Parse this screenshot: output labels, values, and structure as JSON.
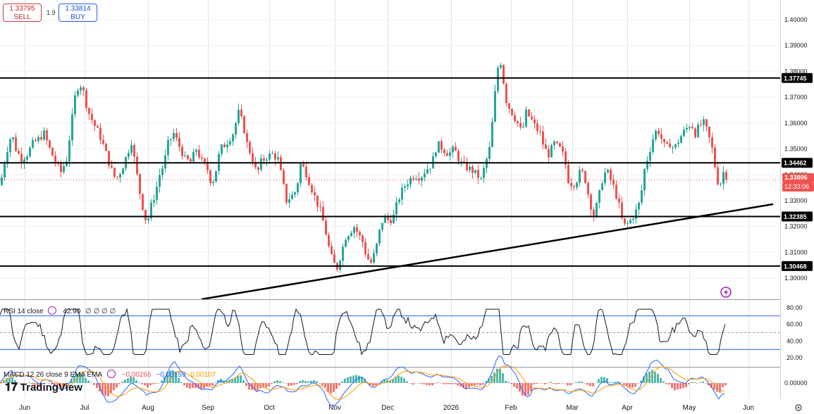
{
  "quote": {
    "sell_price": "1.33795",
    "sell_label": "SELL",
    "buy_price": "1.33814",
    "buy_label": "BUY",
    "spread": "1.9"
  },
  "price_axis": {
    "ticks": [
      "1.40000",
      "1.39000",
      "1.38000",
      "1.37000",
      "1.36000",
      "1.35000",
      "1.34000",
      "1.33000",
      "1.32000",
      "1.31000",
      "1.30000"
    ],
    "tick_values": [
      1.4,
      1.39,
      1.38,
      1.37,
      1.36,
      1.35,
      1.34,
      1.33,
      1.32,
      1.31,
      1.3
    ]
  },
  "levels": [
    {
      "label": "1.37745",
      "value": 1.37745
    },
    {
      "label": "1.34462",
      "value": 1.34462
    },
    {
      "label": "1.32385",
      "value": 1.32385
    },
    {
      "label": "1.30468",
      "value": 1.30468
    }
  ],
  "current_price": {
    "value": "1.33806",
    "countdown": "12:33:06",
    "color": "#ef5350"
  },
  "x_axis": {
    "labels": [
      "Jun",
      "Jul",
      "Aug",
      "Sep",
      "Oct",
      "Nov",
      "Dec",
      "2026",
      "Feb",
      "Mar",
      "Apr",
      "May",
      "Jun"
    ]
  },
  "rsi": {
    "title": "RSI 14 close",
    "value": "42.90",
    "extra": "∅ ∅ ∅ ∅",
    "ticks": [
      "80.00",
      "60.00",
      "40.00",
      "20.00"
    ],
    "tick_values": [
      80,
      60,
      40,
      20
    ],
    "upper": 70,
    "lower": 30
  },
  "macd": {
    "title": "MACD 12 26 close 9 EMA EMA",
    "hist": "−0.00266",
    "macd": "−0.00159",
    "signal": "0.00107",
    "tick": "0.00000"
  },
  "branding": {
    "name": "TradingView"
  },
  "colors": {
    "up": "#26a69a",
    "down": "#ef5350",
    "level": "#000000",
    "rsi_band": "#2962ff",
    "macd_line": "#2962ff",
    "signal_line": "#ff9800"
  },
  "chart_data": {
    "type": "candlestick",
    "title": "",
    "xlabel": "",
    "ylabel": "",
    "ylim": [
      1.296,
      1.405
    ],
    "grid": true,
    "price_path": [
      [
        0,
        1.336
      ],
      [
        8,
        1.348
      ],
      [
        16,
        1.356
      ],
      [
        22,
        1.35
      ],
      [
        30,
        1.346
      ],
      [
        38,
        1.348
      ],
      [
        46,
        1.352
      ],
      [
        55,
        1.354
      ],
      [
        62,
        1.356
      ],
      [
        70,
        1.35
      ],
      [
        78,
        1.345
      ],
      [
        86,
        1.341
      ],
      [
        94,
        1.346
      ],
      [
        100,
        1.358
      ],
      [
        106,
        1.37
      ],
      [
        112,
        1.376
      ],
      [
        118,
        1.372
      ],
      [
        124,
        1.365
      ],
      [
        132,
        1.36
      ],
      [
        140,
        1.356
      ],
      [
        148,
        1.35
      ],
      [
        156,
        1.343
      ],
      [
        164,
        1.338
      ],
      [
        172,
        1.342
      ],
      [
        180,
        1.348
      ],
      [
        186,
        1.353
      ],
      [
        192,
        1.343
      ],
      [
        198,
        1.333
      ],
      [
        204,
        1.325
      ],
      [
        208,
        1.321
      ],
      [
        214,
        1.328
      ],
      [
        220,
        1.333
      ],
      [
        226,
        1.34
      ],
      [
        232,
        1.344
      ],
      [
        238,
        1.352
      ],
      [
        246,
        1.356
      ],
      [
        254,
        1.351
      ],
      [
        262,
        1.346
      ],
      [
        270,
        1.345
      ],
      [
        278,
        1.35
      ],
      [
        286,
        1.345
      ],
      [
        294,
        1.342
      ],
      [
        300,
        1.336
      ],
      [
        306,
        1.342
      ],
      [
        312,
        1.35
      ],
      [
        320,
        1.352
      ],
      [
        330,
        1.356
      ],
      [
        338,
        1.364
      ],
      [
        344,
        1.36
      ],
      [
        350,
        1.352
      ],
      [
        358,
        1.346
      ],
      [
        364,
        1.34
      ],
      [
        370,
        1.345
      ],
      [
        378,
        1.347
      ],
      [
        386,
        1.348
      ],
      [
        394,
        1.346
      ],
      [
        400,
        1.338
      ],
      [
        406,
        1.33
      ],
      [
        414,
        1.332
      ],
      [
        420,
        1.334
      ],
      [
        426,
        1.344
      ],
      [
        432,
        1.342
      ],
      [
        440,
        1.336
      ],
      [
        448,
        1.33
      ],
      [
        454,
        1.326
      ],
      [
        460,
        1.32
      ],
      [
        466,
        1.312
      ],
      [
        472,
        1.306
      ],
      [
        478,
        1.304
      ],
      [
        484,
        1.31
      ],
      [
        490,
        1.316
      ],
      [
        496,
        1.318
      ],
      [
        502,
        1.32
      ],
      [
        508,
        1.317
      ],
      [
        514,
        1.314
      ],
      [
        520,
        1.308
      ],
      [
        526,
        1.306
      ],
      [
        532,
        1.31
      ],
      [
        538,
        1.318
      ],
      [
        544,
        1.324
      ],
      [
        552,
        1.322
      ],
      [
        558,
        1.324
      ],
      [
        564,
        1.33
      ],
      [
        572,
        1.335
      ],
      [
        580,
        1.338
      ],
      [
        588,
        1.34
      ],
      [
        596,
        1.339
      ],
      [
        604,
        1.342
      ],
      [
        612,
        1.344
      ],
      [
        620,
        1.352
      ],
      [
        628,
        1.35
      ],
      [
        636,
        1.348
      ],
      [
        644,
        1.35
      ],
      [
        652,
        1.345
      ],
      [
        660,
        1.343
      ],
      [
        668,
        1.342
      ],
      [
        676,
        1.34
      ],
      [
        682,
        1.338
      ],
      [
        688,
        1.344
      ],
      [
        694,
        1.35
      ],
      [
        700,
        1.365
      ],
      [
        704,
        1.378
      ],
      [
        708,
        1.385
      ],
      [
        712,
        1.382
      ],
      [
        716,
        1.37
      ],
      [
        722,
        1.366
      ],
      [
        728,
        1.363
      ],
      [
        734,
        1.36
      ],
      [
        740,
        1.356
      ],
      [
        746,
        1.364
      ],
      [
        752,
        1.362
      ],
      [
        760,
        1.358
      ],
      [
        766,
        1.356
      ],
      [
        772,
        1.35
      ],
      [
        778,
        1.348
      ],
      [
        786,
        1.352
      ],
      [
        794,
        1.35
      ],
      [
        800,
        1.347
      ],
      [
        806,
        1.338
      ],
      [
        812,
        1.336
      ],
      [
        818,
        1.338
      ],
      [
        824,
        1.342
      ],
      [
        830,
        1.338
      ],
      [
        836,
        1.33
      ],
      [
        842,
        1.324
      ],
      [
        848,
        1.33
      ],
      [
        854,
        1.338
      ],
      [
        860,
        1.342
      ],
      [
        866,
        1.338
      ],
      [
        872,
        1.334
      ],
      [
        878,
        1.328
      ],
      [
        884,
        1.32
      ],
      [
        890,
        1.321
      ],
      [
        896,
        1.323
      ],
      [
        902,
        1.326
      ],
      [
        908,
        1.33
      ],
      [
        914,
        1.342
      ],
      [
        920,
        1.348
      ],
      [
        926,
        1.354
      ],
      [
        932,
        1.358
      ],
      [
        938,
        1.354
      ],
      [
        944,
        1.35
      ],
      [
        950,
        1.352
      ],
      [
        956,
        1.35
      ],
      [
        962,
        1.353
      ],
      [
        968,
        1.356
      ],
      [
        974,
        1.358
      ],
      [
        980,
        1.36
      ],
      [
        986,
        1.356
      ],
      [
        992,
        1.359
      ],
      [
        998,
        1.36
      ],
      [
        1004,
        1.356
      ],
      [
        1010,
        1.35
      ],
      [
        1016,
        1.34
      ],
      [
        1020,
        1.335
      ],
      [
        1026,
        1.341
      ],
      [
        1032,
        1.339
      ]
    ]
  }
}
